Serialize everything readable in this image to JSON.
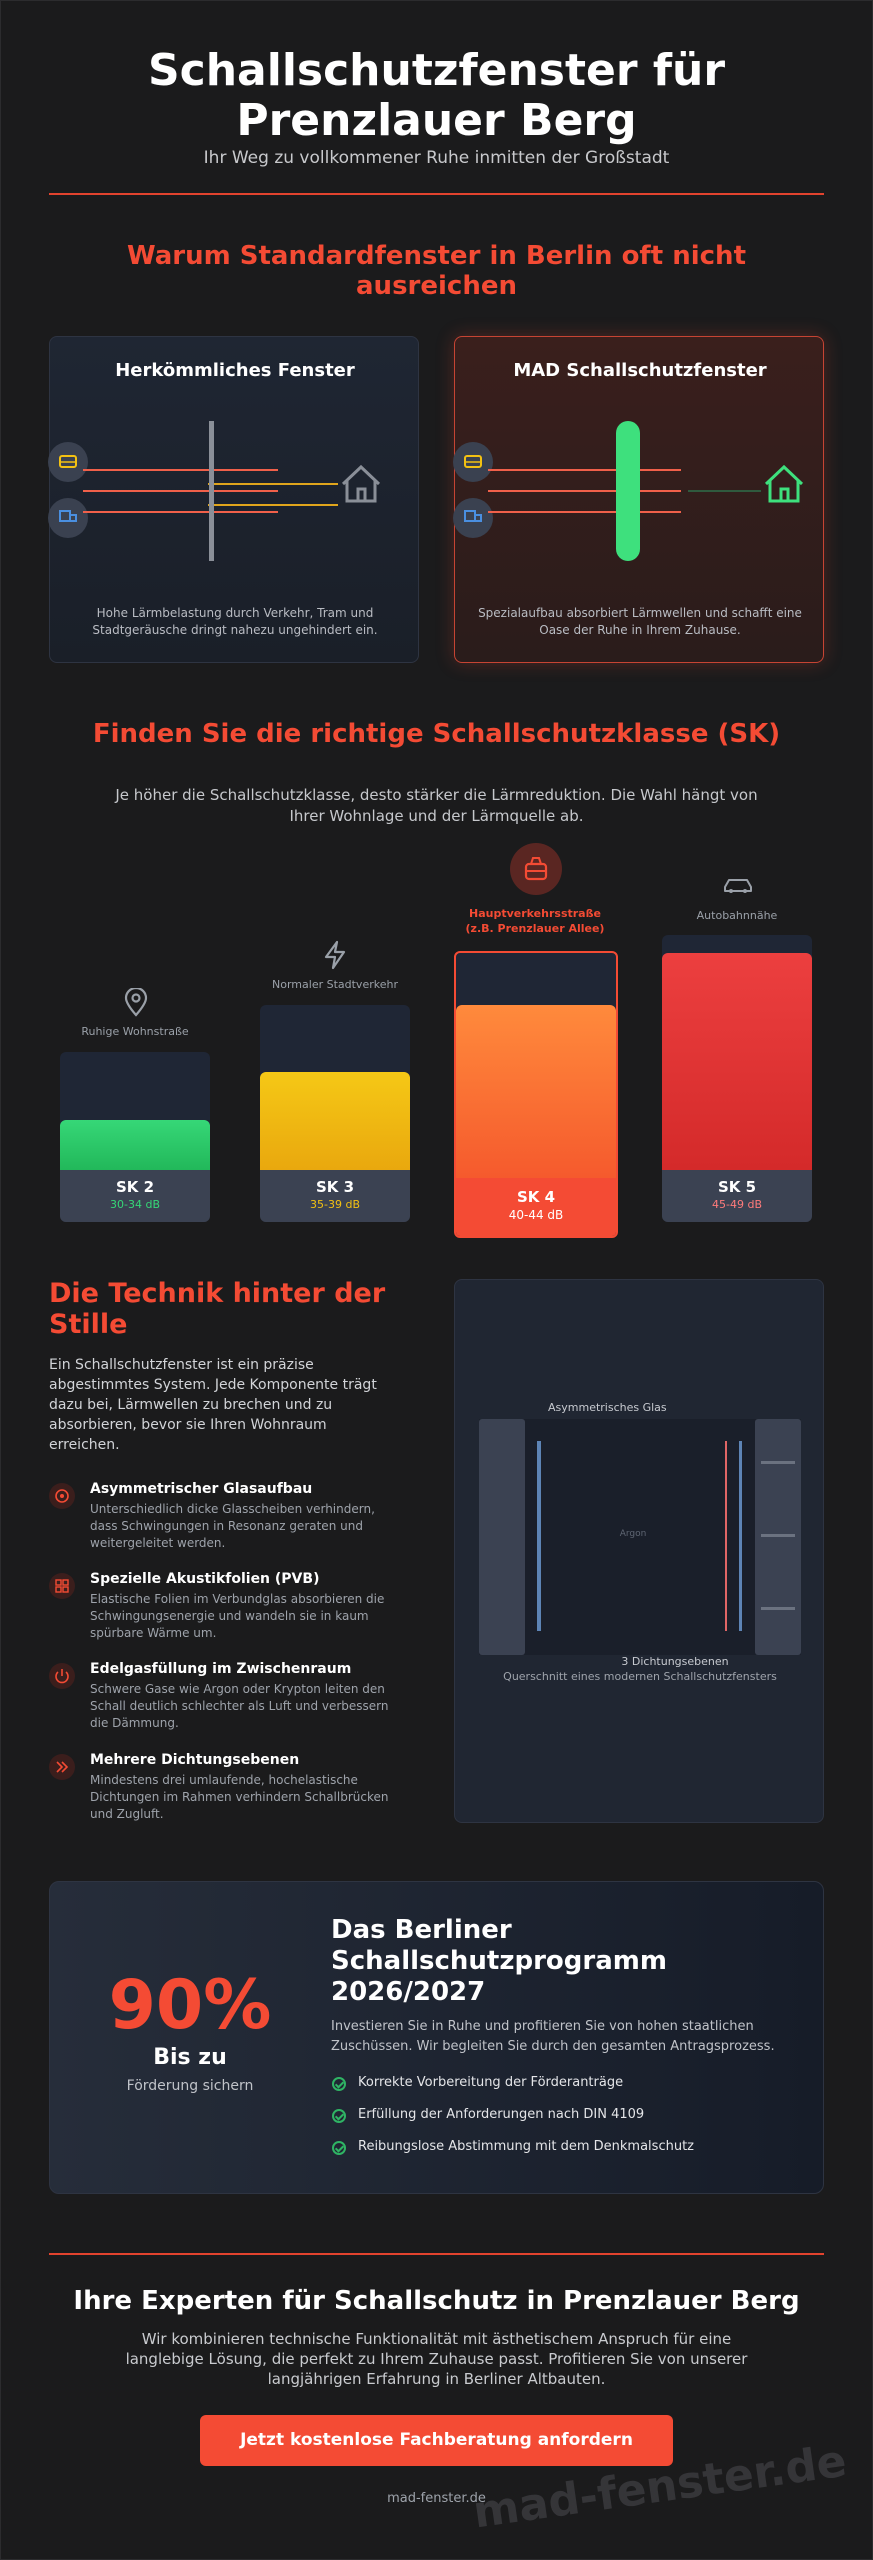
{
  "hero": {
    "title_line1": "Schallschutzfenster für",
    "title_line2": "Prenzlauer Berg",
    "subtitle": "Ihr Weg zu vollkommener Ruhe inmitten der Großstadt"
  },
  "why": {
    "heading_line1": "Warum Standardfenster in Berlin oft nicht",
    "heading_line2": "ausreichen",
    "standard": {
      "title": "Herkömmliches Fenster",
      "desc_line1": "Hohe Lärmbelastung durch Verkehr, Tram und",
      "desc_line2": "Stadtgeräusche dringt nahezu ungehindert ein."
    },
    "mad": {
      "title": "MAD Schallschutzfenster",
      "desc_line1": "Spezialaufbau absorbiert Lärmwellen und schafft eine",
      "desc_line2": "Oase der Ruhe in Ihrem Zuhause."
    }
  },
  "classes": {
    "heading": "Finden Sie die richtige Schallschutzklasse (SK)",
    "intro_line1": "Je höher die Schallschutzklasse, desto stärker die Lärmreduktion. Die Wahl hängt von",
    "intro_line2": "Ihrer Wohnlage und der Lärmquelle ab.",
    "items": [
      {
        "label": "Ruhige Wohnstraße",
        "sk": "SK 2",
        "db": "30-34 dB",
        "icon": "map-pin-icon",
        "fill": 0.33,
        "color": "#2bd46a"
      },
      {
        "label": "Normaler Stadtverkehr",
        "sk": "SK 3",
        "db": "35-39 dB",
        "icon": "lightning-icon",
        "fill": 0.5,
        "color": "#f3c112"
      },
      {
        "label_line1": "Hauptverkehrsstraße",
        "label_line2": "(z.B. Prenzlauer Allee)",
        "sk": "SK 4",
        "db": "40-44 dB",
        "icon": "tram-icon",
        "fill": 0.67,
        "color": "#ff7a30",
        "highlight": true
      },
      {
        "label": "Autobahnnähe",
        "sk": "SK 5",
        "db": "45-49 dB",
        "icon": "car-icon",
        "fill": 0.84,
        "color": "#e23535"
      }
    ]
  },
  "technik": {
    "heading_line1": "Die Technik hinter der",
    "heading_line2": "Stille",
    "intro_lines": [
      "Ein Schallschutzfenster ist ein präzise",
      "abgestimmtes System. Jede Komponente trägt",
      "dazu bei, Lärmwellen zu brechen und zu",
      "absorbieren, bevor sie Ihren Wohnraum",
      "erreichen."
    ],
    "features": [
      {
        "icon": "layers-icon",
        "title": "Asymmetrischer Glasaufbau",
        "lines": [
          "Unterschiedlich dicke Glasscheiben verhindern,",
          "dass Schwingungen in Resonanz geraten und",
          "weitergeleitet werden."
        ]
      },
      {
        "icon": "grid-icon",
        "title": "Spezielle Akustikfolien (PVB)",
        "lines": [
          "Elastische Folien im Verbundglas absorbieren die",
          "Schwingungsenergie und wandeln sie in kaum",
          "spürbare Wärme um."
        ]
      },
      {
        "icon": "power-icon",
        "title": "Edelgasfüllung im Zwischenraum",
        "lines": [
          "Schwere Gase wie Argon oder Krypton leiten den",
          "Schall deutlich schlechter als Luft und verbessern",
          "die Dämmung."
        ]
      },
      {
        "icon": "chevrons-icon",
        "title": "Mehrere Dichtungsebenen",
        "lines": [
          "Mindestens drei umlaufende, hochelastische",
          "Dichtungen im Rahmen verhindern Schallbrücken",
          "und Zugluft."
        ]
      }
    ],
    "diagram": {
      "label_glass": "Asymmetrisches Glas",
      "label_gas": "Argon",
      "label_seals": "3 Dichtungsebenen",
      "caption": "Querschnitt eines modernen Schallschutzfensters"
    }
  },
  "program": {
    "percent": "90%",
    "bis": "Bis zu",
    "foerderung": "Förderung sichern",
    "title_lines": [
      "Das Berliner",
      "Schallschutzprogramm",
      "2026/2027"
    ],
    "desc_line1": "Investieren Sie in Ruhe und profitieren Sie von hohen staatlichen",
    "desc_line2": "Zuschüssen. Wir begleiten Sie durch den gesamten Antragsprozess.",
    "checks": [
      "Korrekte Vorbereitung der Förderanträge",
      "Erfüllung der Anforderungen nach DIN 4109",
      "Reibungslose Abstimmung mit dem Denkmalschutz"
    ]
  },
  "footer": {
    "title": "Ihre Experten für Schallschutz in Prenzlauer Berg",
    "desc_line1": "Wir kombinieren technische Funktionalität mit ästhetischem Anspruch für eine",
    "desc_line2": "langlebige Lösung, die perfekt zu Ihrem Zuhause passt. Profitieren Sie von unserer",
    "desc_line3": "langjährigen Erfahrung in Berliner Altbauten.",
    "cta": "Jetzt kostenlose Fachberatung anfordern",
    "domain": "mad-fenster.de",
    "watermark": "mad-fenster.de"
  },
  "colors": {
    "accent": "#f44b34",
    "green": "#2bd46a",
    "yellow": "#f3c112",
    "orange": "#ff7a30",
    "red": "#e23535"
  }
}
